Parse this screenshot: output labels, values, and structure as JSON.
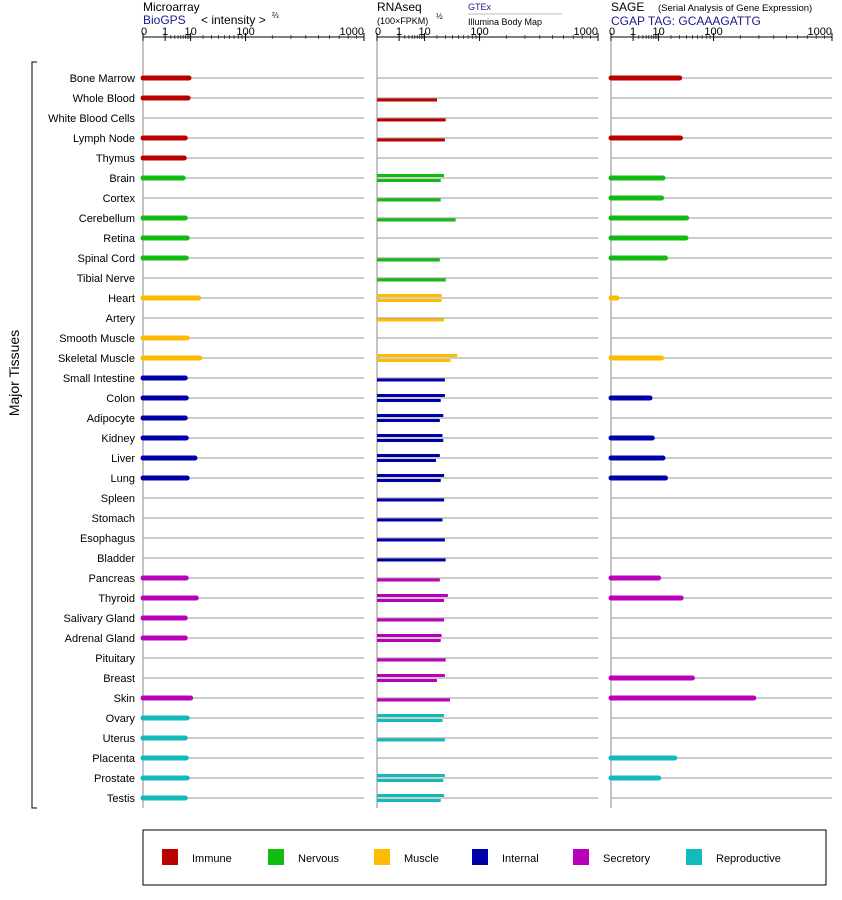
{
  "panels": [
    {
      "title": "Microarray",
      "source": "BioGPS",
      "scale_label": "< intensity >",
      "scale_sup": "⅔",
      "note": ""
    },
    {
      "title": "RNAseq",
      "source": "(100×FPKM)",
      "scale_sup": "½",
      "source_tag_1": "GTEx",
      "source_tag_2": "Illumina Body Map"
    },
    {
      "title": "SAGE",
      "subtitle": "(Serial Analysis of Gene Expression)",
      "source": "CGAP TAG: GCAAAGATTG"
    }
  ],
  "y_axis_label": "Major Tissues",
  "ticks": [
    "0",
    "1",
    "10",
    "100",
    "1000"
  ],
  "colors": {
    "Immune": "#bb0000",
    "Nervous": "#11bb11",
    "Muscle": "#ffbb00",
    "Internal": "#0000aa",
    "Secretory": "#bb00bb",
    "Reproductive": "#11bbbb"
  },
  "legend": [
    "Immune",
    "Nervous",
    "Muscle",
    "Internal",
    "Secretory",
    "Reproductive"
  ],
  "chart_data": {
    "type": "bar",
    "x_scale": "power (approximately cube root), 0 to 1000",
    "xlim": [
      0,
      1000
    ],
    "tissues": [
      {
        "name": "Bone Marrow",
        "group": "Immune",
        "microarray": 9,
        "rnaseq": [],
        "sage": 30
      },
      {
        "name": "Whole Blood",
        "group": "Immune",
        "microarray": 8.5,
        "rnaseq": [
          20
        ],
        "sage": null
      },
      {
        "name": "White Blood Cells",
        "group": "Immune",
        "microarray": null,
        "rnaseq": [
          30
        ],
        "sage": null
      },
      {
        "name": "Lymph Node",
        "group": "Immune",
        "microarray": 7,
        "rnaseq": [
          29
        ],
        "sage": 31
      },
      {
        "name": "Thymus",
        "group": "Immune",
        "microarray": 6.5,
        "rnaseq": [],
        "sage": null
      },
      {
        "name": "Brain",
        "group": "Nervous",
        "microarray": 6,
        "rnaseq": [
          28,
          24
        ],
        "sage": 13
      },
      {
        "name": "Cortex",
        "group": "Nervous",
        "microarray": null,
        "rnaseq": [
          24
        ],
        "sage": 12
      },
      {
        "name": "Cerebellum",
        "group": "Nervous",
        "microarray": 7,
        "rnaseq": [
          45
        ],
        "sage": 40
      },
      {
        "name": "Retina",
        "group": "Nervous",
        "microarray": 8,
        "rnaseq": [],
        "sage": 39
      },
      {
        "name": "Spinal Cord",
        "group": "Nervous",
        "microarray": 7.5,
        "rnaseq": [
          23
        ],
        "sage": 15
      },
      {
        "name": "Tibial Nerve",
        "group": "Nervous",
        "microarray": null,
        "rnaseq": [
          30
        ],
        "sage": null
      },
      {
        "name": "Heart",
        "group": "Muscle",
        "microarray": 16,
        "rnaseq": [
          25,
          25
        ],
        "sage": 0.02
      },
      {
        "name": "Artery",
        "group": "Muscle",
        "microarray": null,
        "rnaseq": [
          28
        ],
        "sage": null
      },
      {
        "name": "Smooth Muscle",
        "group": "Muscle",
        "microarray": 8,
        "rnaseq": [],
        "sage": null
      },
      {
        "name": "Skeletal Muscle",
        "group": "Muscle",
        "microarray": 17,
        "rnaseq": [
          48,
          37
        ],
        "sage": 12
      },
      {
        "name": "Small Intestine",
        "group": "Internal",
        "microarray": 7,
        "rnaseq": [
          29
        ],
        "sage": null
      },
      {
        "name": "Colon",
        "group": "Internal",
        "microarray": 7.5,
        "rnaseq": [
          29,
          24
        ],
        "sage": 5.5
      },
      {
        "name": "Adipocyte",
        "group": "Internal",
        "microarray": 7,
        "rnaseq": [
          27,
          23
        ],
        "sage": null
      },
      {
        "name": "Kidney",
        "group": "Internal",
        "microarray": 7.5,
        "rnaseq": [
          26,
          27
        ],
        "sage": 6.5
      },
      {
        "name": "Liver",
        "group": "Internal",
        "microarray": 13,
        "rnaseq": [
          23,
          19
        ],
        "sage": 13
      },
      {
        "name": "Lung",
        "group": "Internal",
        "microarray": 8,
        "rnaseq": [
          28,
          24
        ],
        "sage": 15
      },
      {
        "name": "Spleen",
        "group": "Internal",
        "microarray": null,
        "rnaseq": [
          28
        ],
        "sage": null
      },
      {
        "name": "Stomach",
        "group": "Internal",
        "microarray": null,
        "rnaseq": [
          26
        ],
        "sage": null
      },
      {
        "name": "Esophagus",
        "group": "Internal",
        "microarray": null,
        "rnaseq": [
          29
        ],
        "sage": null
      },
      {
        "name": "Bladder",
        "group": "Internal",
        "microarray": null,
        "rnaseq": [
          30
        ],
        "sage": null
      },
      {
        "name": "Pancreas",
        "group": "Secretory",
        "microarray": 7.5,
        "rnaseq": [
          23
        ],
        "sage": 10
      },
      {
        "name": "Thyroid",
        "group": "Secretory",
        "microarray": 14,
        "rnaseq": [
          33,
          28
        ],
        "sage": 32
      },
      {
        "name": "Salivary Gland",
        "group": "Secretory",
        "microarray": 7,
        "rnaseq": [
          28
        ],
        "sage": null
      },
      {
        "name": "Adrenal Gland",
        "group": "Secretory",
        "microarray": 7,
        "rnaseq": [
          25,
          24
        ],
        "sage": null
      },
      {
        "name": "Pituitary",
        "group": "Secretory",
        "microarray": null,
        "rnaseq": [
          30
        ],
        "sage": null
      },
      {
        "name": "Breast",
        "group": "Secretory",
        "microarray": null,
        "rnaseq": [
          29,
          20
        ],
        "sage": 50
      },
      {
        "name": "Skin",
        "group": "Secretory",
        "microarray": 10,
        "rnaseq": [
          36
        ],
        "sage": 270
      },
      {
        "name": "Ovary",
        "group": "Reproductive",
        "microarray": 8,
        "rnaseq": [
          28,
          26
        ],
        "sage": null
      },
      {
        "name": "Uterus",
        "group": "Reproductive",
        "microarray": 7,
        "rnaseq": [
          29
        ],
        "sage": null
      },
      {
        "name": "Placenta",
        "group": "Reproductive",
        "microarray": 7.5,
        "rnaseq": [],
        "sage": 24
      },
      {
        "name": "Prostate",
        "group": "Reproductive",
        "microarray": 8,
        "rnaseq": [
          29,
          27
        ],
        "sage": 10
      },
      {
        "name": "Testis",
        "group": "Reproductive",
        "microarray": 7,
        "rnaseq": [
          28,
          24
        ],
        "sage": null
      }
    ]
  }
}
